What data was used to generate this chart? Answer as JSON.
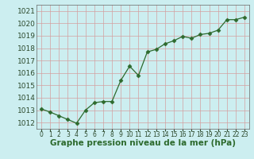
{
  "x": [
    0,
    1,
    2,
    3,
    4,
    5,
    6,
    7,
    8,
    9,
    10,
    11,
    12,
    13,
    14,
    15,
    16,
    17,
    18,
    19,
    20,
    21,
    22,
    23
  ],
  "y": [
    1013.1,
    1012.85,
    1012.55,
    1012.25,
    1011.95,
    1013.0,
    1013.6,
    1013.7,
    1013.7,
    1015.4,
    1016.55,
    1015.8,
    1017.7,
    1017.9,
    1018.35,
    1018.6,
    1018.95,
    1018.8,
    1019.1,
    1019.2,
    1019.45,
    1020.3,
    1020.3,
    1020.5
  ],
  "line_color": "#2d6a2d",
  "marker": "D",
  "marker_size": 2.5,
  "bg_color": "#cceef0",
  "grid_color": "#d4a0a0",
  "xlabel": "Graphe pression niveau de la mer (hPa)",
  "xlabel_color": "#2d6a2d",
  "xlabel_fontsize": 7.5,
  "ytick_fontsize": 6.5,
  "xtick_fontsize": 5.5,
  "ylim": [
    1011.5,
    1021.5
  ],
  "yticks": [
    1012,
    1013,
    1014,
    1015,
    1016,
    1017,
    1018,
    1019,
    1020,
    1021
  ],
  "xticks": [
    0,
    1,
    2,
    3,
    4,
    5,
    6,
    7,
    8,
    9,
    10,
    11,
    12,
    13,
    14,
    15,
    16,
    17,
    18,
    19,
    20,
    21,
    22,
    23
  ]
}
